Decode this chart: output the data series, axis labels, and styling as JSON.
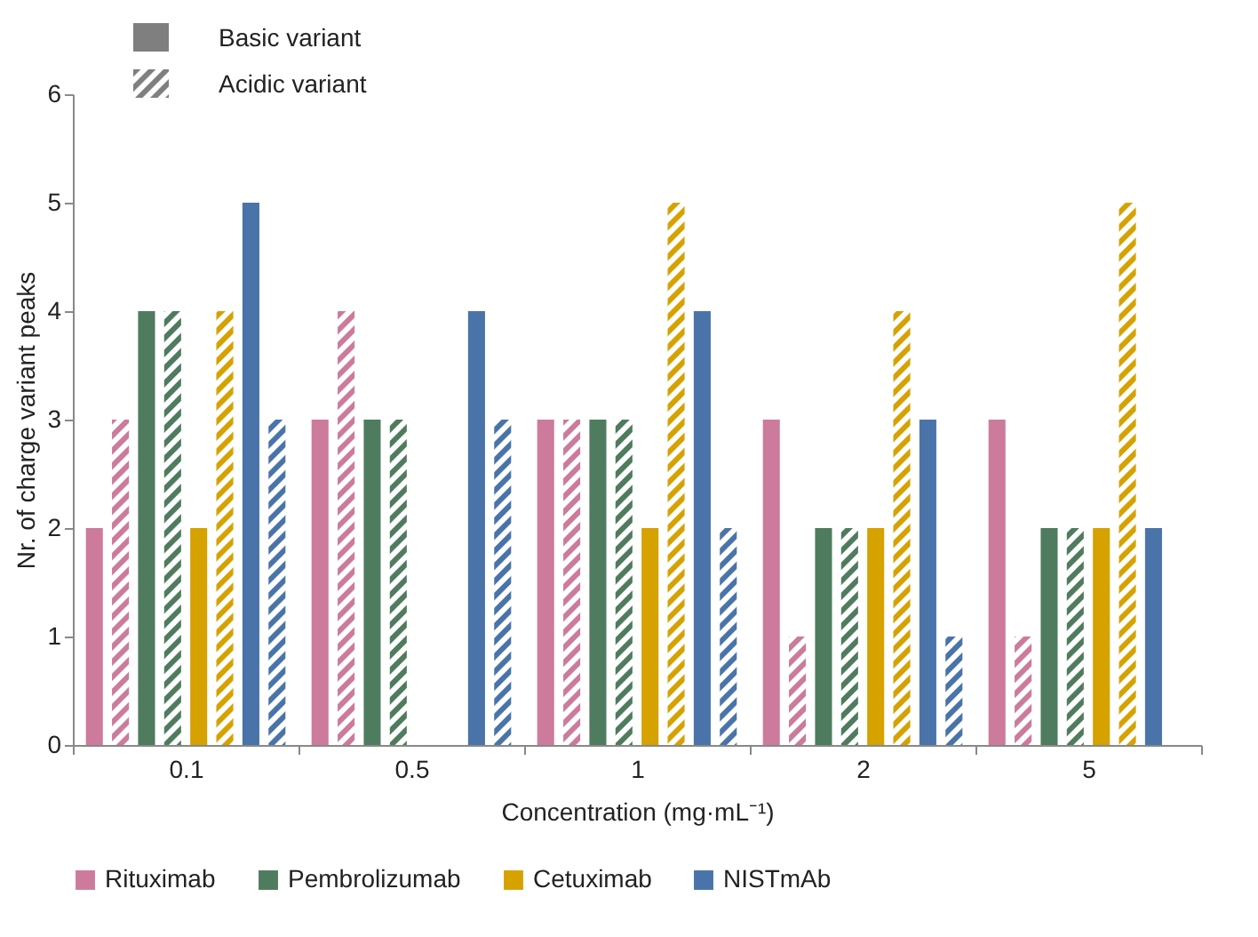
{
  "chart_data": {
    "type": "bar",
    "xlabel": "Concentration (mg·mL⁻¹)",
    "ylabel": "Nr. of charge variant peaks",
    "categories": [
      "0.1",
      "0.5",
      "1",
      "2",
      "5"
    ],
    "series": [
      {
        "name": "Rituximab",
        "color": "#cc7b9c",
        "values": [
          2,
          3,
          3,
          3,
          3
        ]
      },
      {
        "color": "#cc7b9c",
        "line_style": "dashed",
        "values": [
          3,
          4,
          3,
          1,
          1
        ]
      },
      {
        "name": "Pembrolizumab",
        "color": "#4f7c5e",
        "values": [
          4,
          3,
          3,
          2,
          2
        ]
      },
      {
        "color": "#4f7c5e",
        "line_style": "dashed",
        "values": [
          4,
          3,
          3,
          2,
          2
        ]
      },
      {
        "name": "Cetuximab",
        "color": "#d6a200",
        "values": [
          2,
          null,
          2,
          2,
          2
        ]
      },
      {
        "color": "#d6a200",
        "line_style": "dashed",
        "values": [
          4,
          null,
          5,
          4,
          5
        ]
      },
      {
        "name": "NISTmAb",
        "color": "#4a74a9",
        "values": [
          5,
          4,
          4,
          3,
          2
        ]
      },
      {
        "color": "#4a74a9",
        "line_style": "dashed",
        "values": [
          3,
          3,
          2,
          1,
          null
        ]
      }
    ],
    "annotations": [
      "Basic variant",
      "Acidic variant"
    ],
    "ylim": [
      0,
      6
    ],
    "yticks": [
      0,
      1,
      2,
      3,
      4,
      5,
      6
    ],
    "grid": false,
    "legend": "bottom"
  }
}
